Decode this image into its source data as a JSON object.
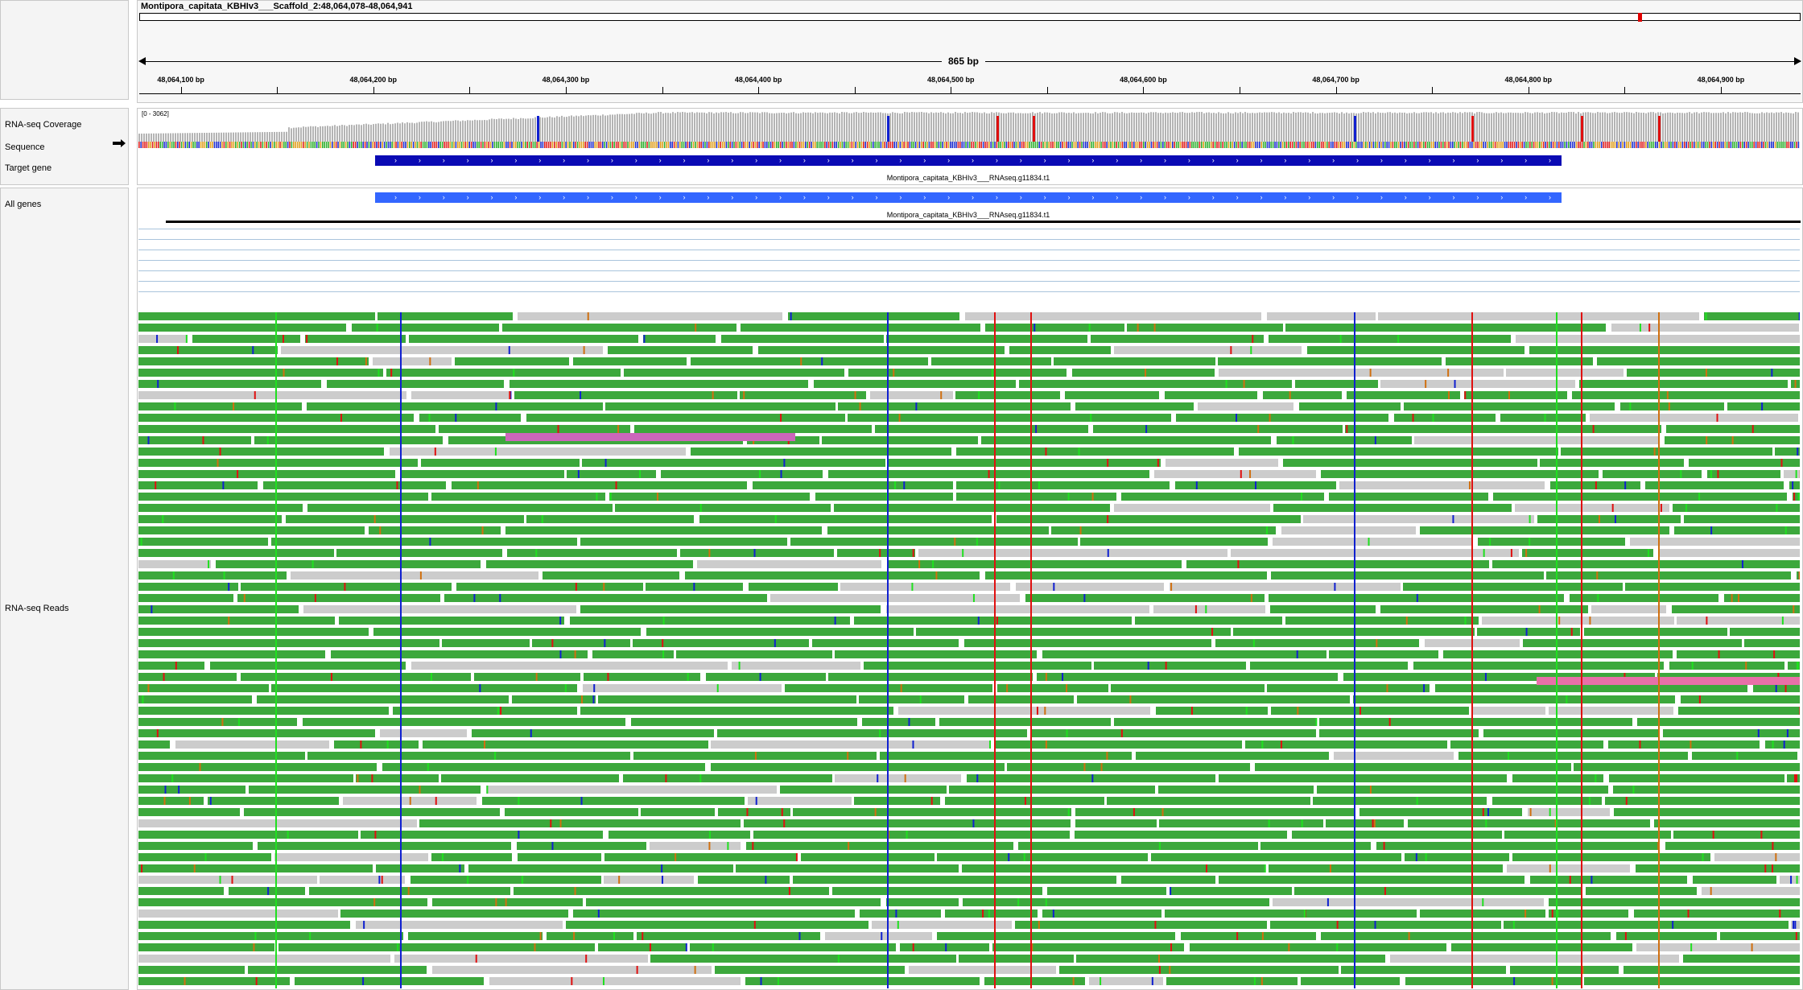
{
  "locus": {
    "title": "Montipora_capitata_KBHIv3___Scaffold_2:48,064,078-48,064,941",
    "span": "865 bp"
  },
  "ruler": {
    "ticks": [
      {
        "label": "48,064,100 bp",
        "pos": 100
      },
      {
        "label": "48,064,200 bp",
        "pos": 200
      },
      {
        "label": "48,064,300 bp",
        "pos": 300
      },
      {
        "label": "48,064,400 bp",
        "pos": 400
      },
      {
        "label": "48,064,500 bp",
        "pos": 500
      },
      {
        "label": "48,064,600 bp",
        "pos": 600
      },
      {
        "label": "48,064,700 bp",
        "pos": 700
      },
      {
        "label": "48,064,800 bp",
        "pos": 800
      },
      {
        "label": "48,064,900 bp",
        "pos": 900
      }
    ]
  },
  "tracks": {
    "coverage_label": "RNA-seq Coverage",
    "coverage_range": "[0 - 3062]",
    "sequence_label": "Sequence",
    "target_gene_label": "Target gene",
    "all_genes_label": "All genes",
    "reads_label": "RNA-seq Reads"
  },
  "genes": {
    "target_name": "Montipora_capitata_KBHIv3___RNAseq.g11834.t1",
    "all_name": "Montipora_capitata_KBHIv3___RNAseq.g11834.t1"
  },
  "colors": {
    "read": "#3ca83c",
    "read_lowmapq": "#cccccc",
    "target_gene": "#0a0ab4",
    "all_gene": "#3366ff",
    "coverage": "#b4b4b4",
    "mismatch_red": "#e01010",
    "mismatch_blue": "#1020d0",
    "mismatch_green": "#20e020",
    "mismatch_orange": "#d07010",
    "insert_pink": "#e870a8"
  }
}
